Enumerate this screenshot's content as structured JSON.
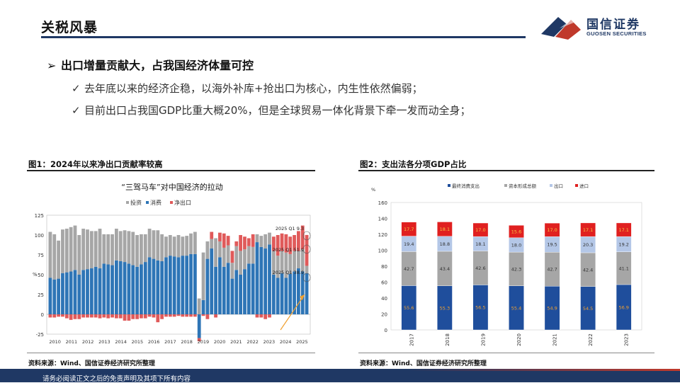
{
  "header": {
    "title": "关税风暴",
    "logo_cn": "国信证券",
    "logo_en": "GUOSEN SECURITIES"
  },
  "bullets": {
    "main": "出口增量贡献大，占我国经济体量可控",
    "sub1": "去年底以来的经济企稳，以海外补库+抢出口为核心，内生性依然偏弱；",
    "sub2": "目前出口占我国GDP比重大概20%，但是全球贸易一体化背景下牵一发而动全身；",
    "arrow_glyph": "➢",
    "check_glyph": "✓"
  },
  "figure1": {
    "label": "图1：2024年以来净出口贡献率较高",
    "source": "资料来源：Wind、国信证券经济研究所整理",
    "chart_data": {
      "type": "bar",
      "title": "“三驾马车”对中国经济的拉动",
      "ylabel": "%",
      "ylim": [
        -25,
        125
      ],
      "yticks": [
        "-25",
        "0",
        "25",
        "50",
        "75",
        "100",
        "125"
      ],
      "x_labels": [
        "2010",
        "2011",
        "2012",
        "2013",
        "2014",
        "2015",
        "2016",
        "2017",
        "2018",
        "2019",
        "2020",
        "2021",
        "2022",
        "2023",
        "2024",
        "2025"
      ],
      "legend": [
        "投资",
        "消费",
        "净出口"
      ],
      "colors": {
        "投资": "#a6a6a6",
        "消费": "#2e75b6",
        "净出口": "#e05a5a"
      },
      "annotations": [
        "2025 Q1 9.3",
        "2025 Q1 51.9",
        "2025 Q1 38.9"
      ],
      "series": [
        {
          "name": "消费",
          "values": [
            46,
            44,
            45,
            52,
            53,
            54,
            56,
            50,
            56,
            57,
            58,
            60,
            58,
            64,
            63,
            62,
            68,
            67,
            66,
            64,
            62,
            60,
            63,
            66,
            72,
            70,
            68,
            67,
            72,
            74,
            73,
            72,
            74,
            74,
            76,
            76,
            -30,
            18,
            70,
            83,
            60,
            72,
            60,
            65,
            45,
            56,
            50,
            57,
            64,
            64,
            91,
            85,
            83,
            88,
            50,
            46,
            52,
            46,
            51,
            54,
            58,
            54,
            51.9
          ]
        },
        {
          "name": "投资",
          "values": [
            58,
            57,
            48,
            55,
            55,
            56,
            56,
            50,
            52,
            50,
            47,
            45,
            50,
            37,
            38,
            39,
            40,
            38,
            40,
            41,
            42,
            40,
            38,
            35,
            36,
            36,
            38,
            34,
            26,
            26,
            25,
            28,
            24,
            25,
            26,
            28,
            20,
            60,
            22,
            12,
            36,
            20,
            24,
            22,
            20,
            30,
            30,
            25,
            22,
            21,
            10,
            14,
            18,
            15,
            30,
            28,
            28,
            32,
            25,
            26,
            22,
            28,
            9.3
          ]
        },
        {
          "name": "净出口",
          "values": [
            -4,
            -4,
            -3,
            -3,
            -5,
            -7,
            -6,
            -6,
            -4,
            -4,
            -4,
            -4,
            -5,
            -4,
            -5,
            -4,
            -5,
            -5,
            -8,
            -8,
            -6,
            -6,
            -5,
            -5,
            -3,
            -4,
            -10,
            -6,
            -3,
            -3,
            -3,
            -2,
            -3,
            -3,
            -3,
            -3,
            -4,
            -2,
            -6,
            9,
            -4,
            11,
            18,
            12,
            15,
            6,
            20,
            16,
            10,
            16,
            -4,
            -4,
            -6,
            -4,
            18,
            26,
            22,
            23,
            22,
            20,
            25,
            30,
            38.9
          ]
        }
      ]
    }
  },
  "figure2": {
    "label": "图2：支出法各分项GDP占比",
    "source": "资料来源：Wind、国信证券经济研究所整理",
    "chart_data": {
      "type": "bar",
      "stacked": true,
      "ylabel": "%",
      "ylim": [
        0,
        160
      ],
      "yticks": [
        "0",
        "20",
        "40",
        "60",
        "80",
        "100",
        "120",
        "140",
        "160"
      ],
      "categories": [
        "2017",
        "2018",
        "2019",
        "2020",
        "2021",
        "2022",
        "2023"
      ],
      "legend_position": "top",
      "series": [
        {
          "name": "最终消费支出",
          "color": "#1f4e9c",
          "values": [
            55.6,
            55.3,
            56.5,
            55.4,
            54.9,
            54.5,
            56.9
          ]
        },
        {
          "name": "资本形成总额",
          "color": "#a6a6a6",
          "values": [
            42.7,
            43.4,
            42.6,
            42.3,
            42.7,
            42.4,
            41.1
          ]
        },
        {
          "name": "出口",
          "color": "#b4c7e7",
          "values": [
            19.4,
            18.8,
            18.1,
            18.0,
            19.5,
            20.3,
            19.2
          ]
        },
        {
          "name": "进口",
          "color": "#e02020",
          "values": [
            17.7,
            18.1,
            17.0,
            15.6,
            17.0,
            17.1,
            17.1
          ]
        }
      ]
    }
  },
  "footer": {
    "disclaimer": "请务必阅读正文之后的免责声明及其项下所有内容"
  }
}
